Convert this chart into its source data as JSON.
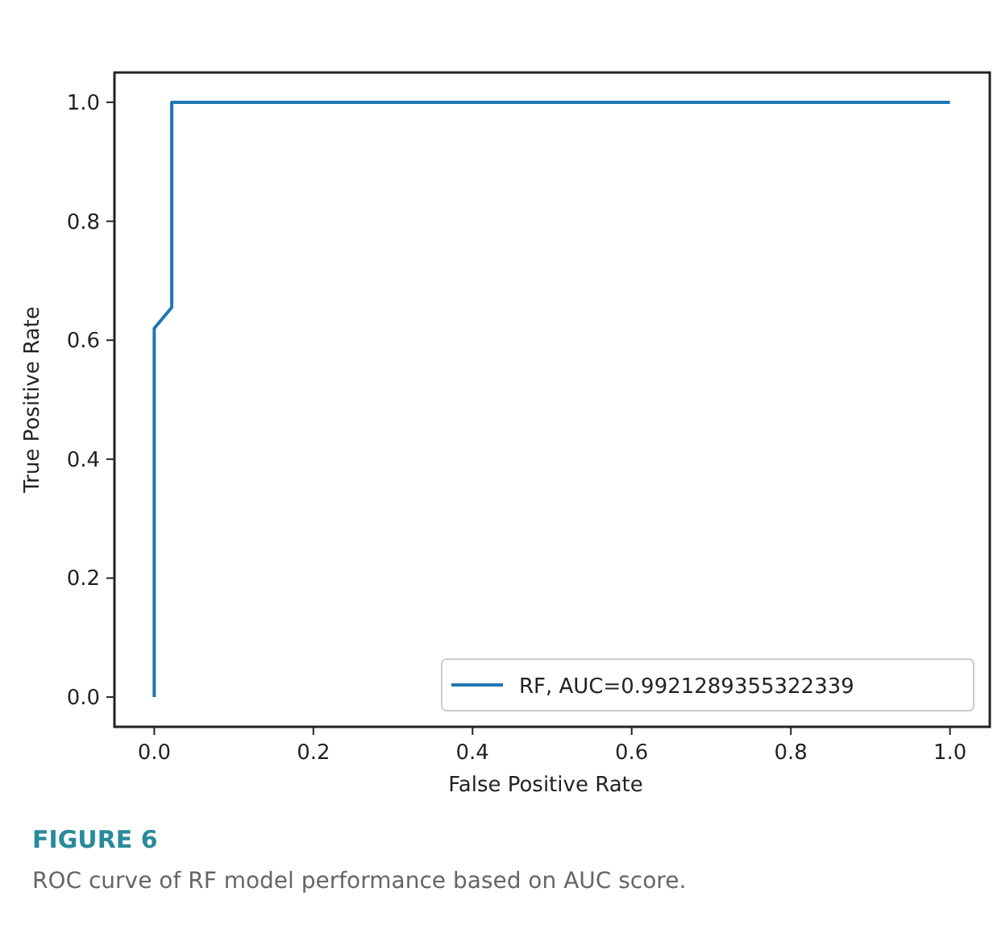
{
  "chart_data": {
    "type": "line",
    "xlabel": "False Positive Rate",
    "ylabel": "True Positive Rate",
    "x": [
      0,
      0,
      0.022,
      0.022,
      1
    ],
    "series": [
      {
        "name": "RF, AUC=0.9921289355322339",
        "color": "#1f77b4",
        "values": [
          0,
          0.62,
          0.655,
          1,
          1
        ]
      }
    ],
    "xlim": [
      -0.05,
      1.05
    ],
    "ylim": [
      -0.05,
      1.05
    ],
    "xticks": [
      {
        "value": 0,
        "label": "0.0"
      },
      0.2,
      0.4,
      0.6,
      0.8,
      {
        "value": 1,
        "label": "1.0"
      }
    ],
    "yticks": [
      {
        "value": 0,
        "label": "0.0"
      },
      0.2,
      0.4,
      0.6,
      0.8,
      {
        "value": 1,
        "label": "1.0"
      }
    ],
    "legend": "bottom right",
    "grid": false,
    "marker": "none",
    "line_style": "solid",
    "annotations": [
      "FIGURE 6",
      "ROC curve of RF model performance based on AUC score."
    ]
  }
}
